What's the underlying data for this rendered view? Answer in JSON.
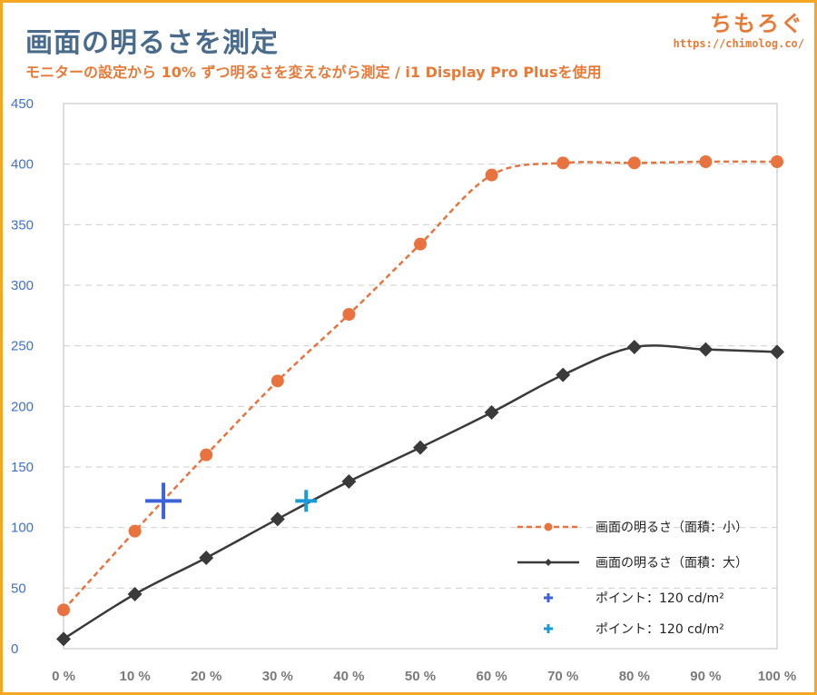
{
  "header": {
    "title": "画面の明るさを測定",
    "subtitle": "モニターの設定から 10% ずつ明るさを変えながら測定 / i1 Display Pro Plusを使用"
  },
  "brand": {
    "name": "ちもろぐ",
    "url": "https://chimolog.co/"
  },
  "chart_data": {
    "type": "line",
    "categories": [
      "0 %",
      "10 %",
      "20 %",
      "30 %",
      "40 %",
      "50 %",
      "60 %",
      "70 %",
      "80 %",
      "90 %",
      "100 %"
    ],
    "x": [
      0,
      10,
      20,
      30,
      40,
      50,
      60,
      70,
      80,
      90,
      100
    ],
    "ylim": [
      0,
      450
    ],
    "yticks": [
      0,
      50,
      100,
      150,
      200,
      250,
      300,
      350,
      400,
      450
    ],
    "grid": true,
    "legend_position": "bottom-right",
    "series": [
      {
        "name": "画面の明るさ（面積：小）",
        "color": "#e8733e",
        "style": "dashed",
        "marker": "circle",
        "values": [
          32,
          97,
          160,
          221,
          276,
          334,
          391,
          401,
          401,
          402,
          402
        ]
      },
      {
        "name": "画面の明るさ（面積：大）",
        "color": "#3a3a3a",
        "style": "solid",
        "marker": "diamond",
        "values": [
          8,
          45,
          75,
          107,
          138,
          166,
          195,
          226,
          249,
          247,
          245
        ]
      },
      {
        "name": "ポイント：120 cd/m²",
        "color": "#3d63d9",
        "style": "none",
        "marker": "plus",
        "points": [
          {
            "x": 14,
            "y": 122
          }
        ]
      },
      {
        "name": "ポイント：120 cd/m²",
        "color": "#1a9ad6",
        "style": "none",
        "marker": "plus",
        "points": [
          {
            "x": 34,
            "y": 122
          }
        ]
      }
    ]
  }
}
